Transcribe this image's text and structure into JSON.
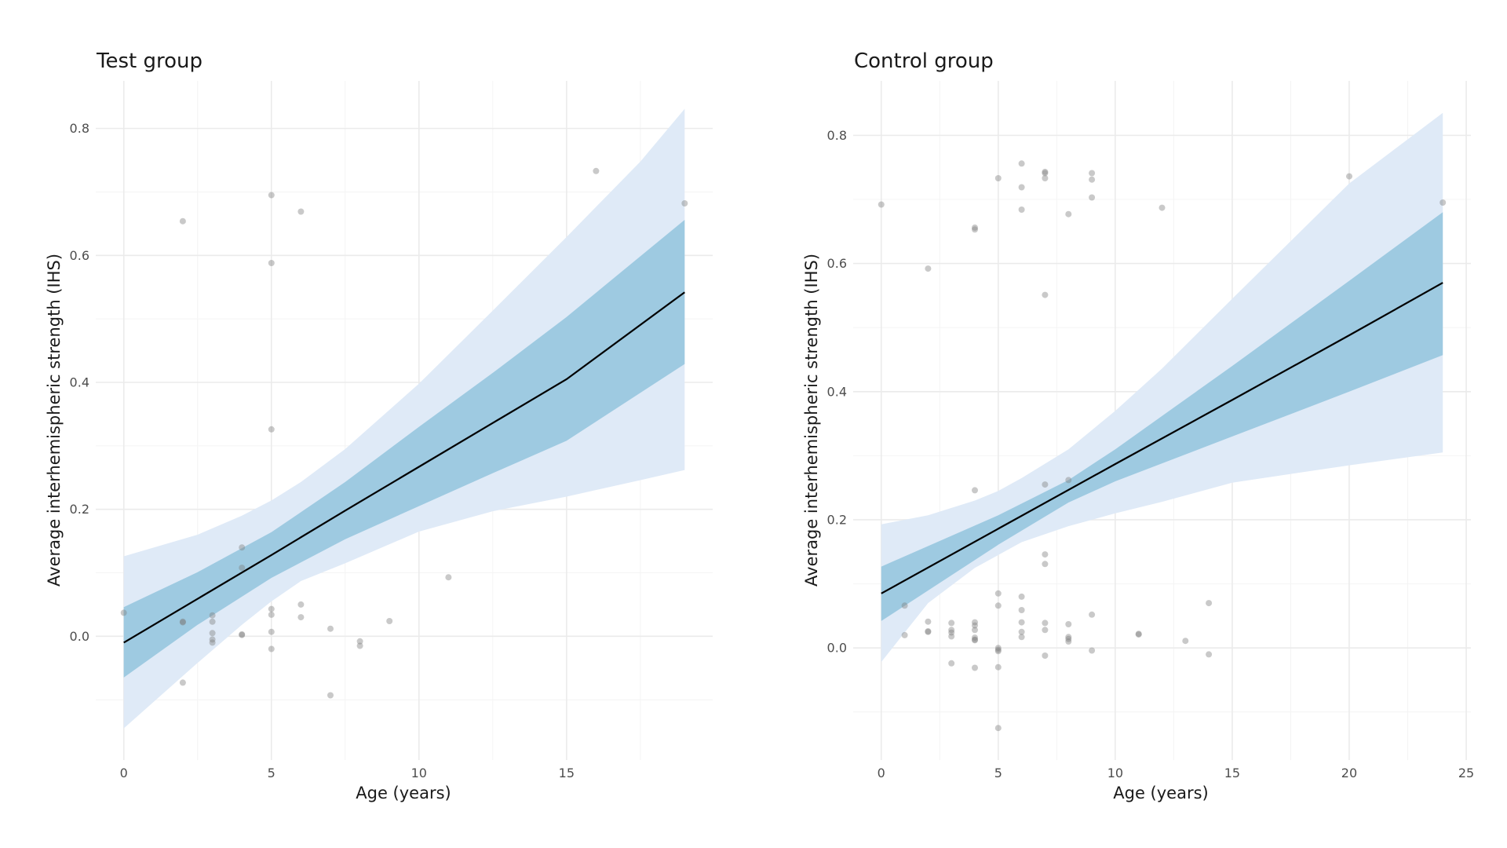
{
  "colors": {
    "band_outer": "#dfeaf7",
    "band_inner": "#9ecae1",
    "fit_line": "#000000",
    "points": "#7f7f7f",
    "grid_major": "#ebebeb",
    "grid_minor": "#f4f4f4"
  },
  "chart_data": [
    {
      "type": "scatter",
      "title": "Test group",
      "xlabel": "Age (years)",
      "ylabel": "Average interhemispheric strength (IHS)",
      "xlim": [
        -0.95,
        19.95
      ],
      "ylim": [
        -0.195,
        0.875
      ],
      "x_ticks": [
        0,
        5,
        10,
        15
      ],
      "x_tick_labels": [
        "0",
        "5",
        "10",
        "15"
      ],
      "x_minor_ticks": [
        2.5,
        7.5,
        12.5,
        17.5
      ],
      "y_ticks": [
        0.0,
        0.2,
        0.4,
        0.6,
        0.8
      ],
      "y_tick_labels": [
        "0.0",
        "0.2",
        "0.4",
        "0.6",
        "0.8"
      ],
      "y_minor_ticks": [
        -0.1,
        0.1,
        0.3,
        0.5,
        0.7
      ],
      "grid": true,
      "points": [
        [
          0,
          0.037
        ],
        [
          2,
          0.654
        ],
        [
          2,
          0.023
        ],
        [
          2,
          0.022
        ],
        [
          2,
          -0.073
        ],
        [
          3,
          0.033
        ],
        [
          3,
          0.023
        ],
        [
          3,
          0.005
        ],
        [
          3,
          -0.005
        ],
        [
          3,
          -0.01
        ],
        [
          4,
          0.14
        ],
        [
          4,
          0.108
        ],
        [
          4,
          0.002
        ],
        [
          4,
          0.003
        ],
        [
          5,
          0.695
        ],
        [
          5,
          0.588
        ],
        [
          5,
          0.326
        ],
        [
          5,
          0.043
        ],
        [
          5,
          0.034
        ],
        [
          5,
          0.007
        ],
        [
          5,
          -0.02
        ],
        [
          6,
          0.669
        ],
        [
          6,
          0.05
        ],
        [
          6,
          0.03
        ],
        [
          7,
          0.012
        ],
        [
          7,
          -0.093
        ],
        [
          8,
          -0.008
        ],
        [
          8,
          -0.015
        ],
        [
          9,
          0.024
        ],
        [
          11,
          0.093
        ],
        [
          16,
          0.733
        ],
        [
          19,
          0.682
        ]
      ],
      "fit": {
        "x": [
          0,
          2.5,
          5,
          7.5,
          10,
          12.5,
          15,
          19
        ],
        "y": [
          -0.01,
          0.059,
          0.128,
          0.198,
          0.267,
          0.336,
          0.405,
          0.542
        ]
      },
      "band_inner": {
        "x": [
          0,
          2.5,
          5,
          7.5,
          10,
          12.5,
          15,
          19
        ],
        "upper": [
          0.046,
          0.101,
          0.164,
          0.243,
          0.33,
          0.415,
          0.503,
          0.656
        ],
        "lower": [
          -0.065,
          0.018,
          0.092,
          0.153,
          0.205,
          0.257,
          0.308,
          0.429
        ]
      },
      "band_outer": {
        "x": [
          0,
          2.5,
          4,
          5,
          6,
          7.5,
          10,
          12.5,
          15,
          17.5,
          19
        ],
        "upper": [
          0.126,
          0.16,
          0.19,
          0.214,
          0.243,
          0.295,
          0.398,
          0.513,
          0.629,
          0.748,
          0.831
        ],
        "lower": [
          -0.145,
          -0.042,
          0.018,
          0.055,
          0.087,
          0.115,
          0.165,
          0.197,
          0.22,
          0.246,
          0.262
        ]
      }
    },
    {
      "type": "scatter",
      "title": "Control group",
      "xlabel": "Age (years)",
      "ylabel": "Average interhemispheric strength (IHS)",
      "xlim": [
        -1.2,
        25.2
      ],
      "ylim": [
        -0.175,
        0.885
      ],
      "x_ticks": [
        0,
        5,
        10,
        15,
        20,
        25
      ],
      "x_tick_labels": [
        "0",
        "5",
        "10",
        "15",
        "20",
        "25"
      ],
      "x_minor_ticks": [
        2.5,
        7.5,
        12.5,
        17.5,
        22.5
      ],
      "y_ticks": [
        0.0,
        0.2,
        0.4,
        0.6,
        0.8
      ],
      "y_tick_labels": [
        "0.0",
        "0.2",
        "0.4",
        "0.6",
        "0.8"
      ],
      "y_minor_ticks": [
        -0.1,
        0.1,
        0.3,
        0.5,
        0.7
      ],
      "grid": true,
      "points": [
        [
          0,
          0.692
        ],
        [
          1,
          0.066
        ],
        [
          1,
          0.02
        ],
        [
          2,
          0.592
        ],
        [
          2,
          0.041
        ],
        [
          2,
          0.026
        ],
        [
          2,
          0.025
        ],
        [
          3,
          0.039
        ],
        [
          3,
          0.028
        ],
        [
          3,
          0.024
        ],
        [
          3,
          0.018
        ],
        [
          3,
          -0.024
        ],
        [
          4,
          0.656
        ],
        [
          4,
          0.653
        ],
        [
          4,
          0.246
        ],
        [
          4,
          0.04
        ],
        [
          4,
          0.035
        ],
        [
          4,
          0.028
        ],
        [
          4,
          0.016
        ],
        [
          4,
          0.013
        ],
        [
          4,
          0.012
        ],
        [
          4,
          -0.031
        ],
        [
          5,
          0.733
        ],
        [
          5,
          0.085
        ],
        [
          5,
          0.066
        ],
        [
          5,
          0.0
        ],
        [
          5,
          -0.003
        ],
        [
          5,
          -0.005
        ],
        [
          5,
          -0.03
        ],
        [
          5,
          -0.125
        ],
        [
          6,
          0.756
        ],
        [
          6,
          0.719
        ],
        [
          6,
          0.684
        ],
        [
          6,
          0.08
        ],
        [
          6,
          0.059
        ],
        [
          6,
          0.04
        ],
        [
          6,
          0.025
        ],
        [
          6,
          0.017
        ],
        [
          7,
          0.743
        ],
        [
          7,
          0.741
        ],
        [
          7,
          0.733
        ],
        [
          7,
          0.551
        ],
        [
          7,
          0.255
        ],
        [
          7,
          0.146
        ],
        [
          7,
          0.131
        ],
        [
          7,
          0.039
        ],
        [
          7,
          0.028
        ],
        [
          7,
          -0.012
        ],
        [
          8,
          0.677
        ],
        [
          8,
          0.262
        ],
        [
          8,
          0.037
        ],
        [
          8,
          0.017
        ],
        [
          8,
          0.014
        ],
        [
          8,
          0.01
        ],
        [
          9,
          0.741
        ],
        [
          9,
          0.731
        ],
        [
          9,
          0.703
        ],
        [
          9,
          0.052
        ],
        [
          9,
          -0.004
        ],
        [
          11,
          0.022
        ],
        [
          11,
          0.021
        ],
        [
          12,
          0.687
        ],
        [
          13,
          0.011
        ],
        [
          14,
          0.07
        ],
        [
          14,
          -0.01
        ],
        [
          20,
          0.736
        ],
        [
          24,
          0.695
        ]
      ],
      "fit": {
        "x": [
          0,
          5,
          10,
          15,
          20,
          24
        ],
        "y": [
          0.085,
          0.186,
          0.287,
          0.387,
          0.488,
          0.57
        ]
      },
      "band_inner": {
        "x": [
          0,
          5,
          8,
          10,
          15,
          20,
          24
        ],
        "upper": [
          0.127,
          0.207,
          0.262,
          0.31,
          0.44,
          0.573,
          0.68
        ],
        "lower": [
          0.042,
          0.161,
          0.227,
          0.26,
          0.33,
          0.4,
          0.457
        ]
      },
      "band_outer": {
        "x": [
          0,
          2,
          4,
          5,
          6,
          8,
          10,
          12,
          15,
          20,
          24
        ],
        "upper": [
          0.193,
          0.207,
          0.23,
          0.245,
          0.265,
          0.31,
          0.37,
          0.436,
          0.545,
          0.725,
          0.835
        ],
        "lower": [
          -0.022,
          0.07,
          0.125,
          0.145,
          0.165,
          0.19,
          0.21,
          0.228,
          0.258,
          0.285,
          0.305
        ]
      }
    }
  ]
}
